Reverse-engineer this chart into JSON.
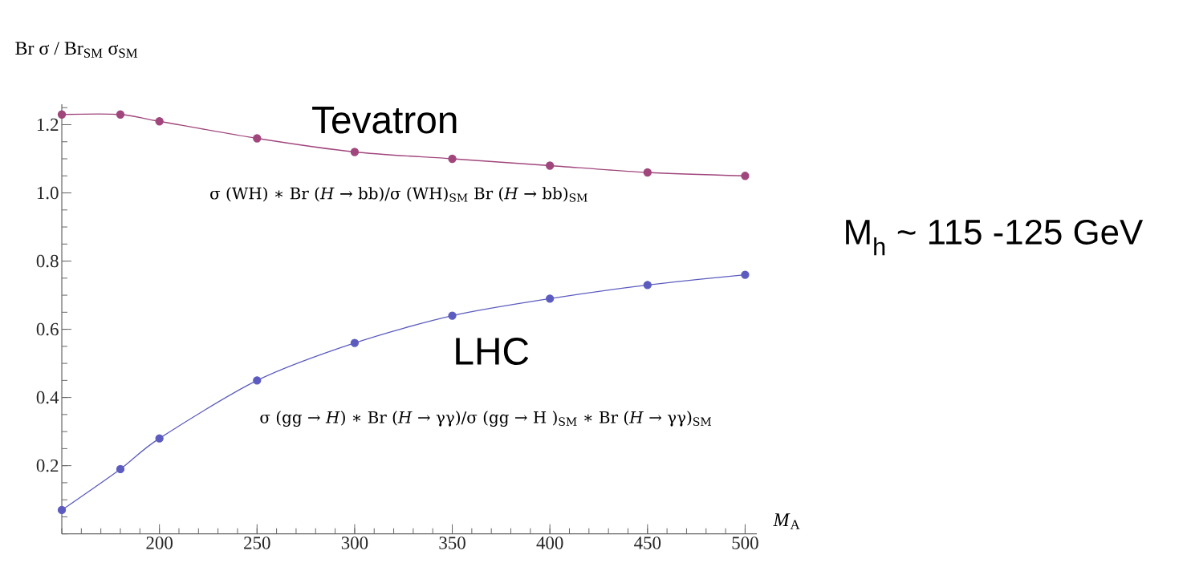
{
  "chart_data": {
    "type": "line",
    "xlabel": "*M*$_{A}$",
    "ylabel": "Br σ / Br$_{SM}$ σ$_{SM}$",
    "x": [
      150,
      180,
      200,
      250,
      300,
      350,
      400,
      450,
      500
    ],
    "series": [
      {
        "name": "Tevatron",
        "color": "#a0467c",
        "values": [
          1.23,
          1.23,
          1.21,
          1.16,
          1.12,
          1.1,
          1.08,
          1.06,
          1.05
        ]
      },
      {
        "name": "LHC",
        "color": "#5c5cc0",
        "values": [
          0.07,
          0.19,
          0.28,
          0.45,
          0.56,
          0.64,
          0.69,
          0.73,
          0.76
        ]
      }
    ],
    "marker": "circle",
    "xlim": [
      150,
      506
    ],
    "ylim": [
      0,
      1.26
    ],
    "xticks": [
      200,
      250,
      300,
      350,
      400,
      450,
      500
    ],
    "yticks": [
      0.2,
      0.4,
      0.6,
      0.8,
      {
        "value": 1,
        "label": "1.0"
      },
      1.2
    ],
    "annotations": [
      "σ (WH) ∗ Br (*H* → bb)/σ (WH)$_{SM}$ Br (*H* → bb)$_{SM}$",
      "σ (gg → *H*) ∗ Br (*H* → γγ)/σ (gg → H )$_{SM}$ ∗ Br (*H* → γγ)$_{SM}$",
      "M$_{h}$ ~ 115 -125 GeV"
    ]
  }
}
